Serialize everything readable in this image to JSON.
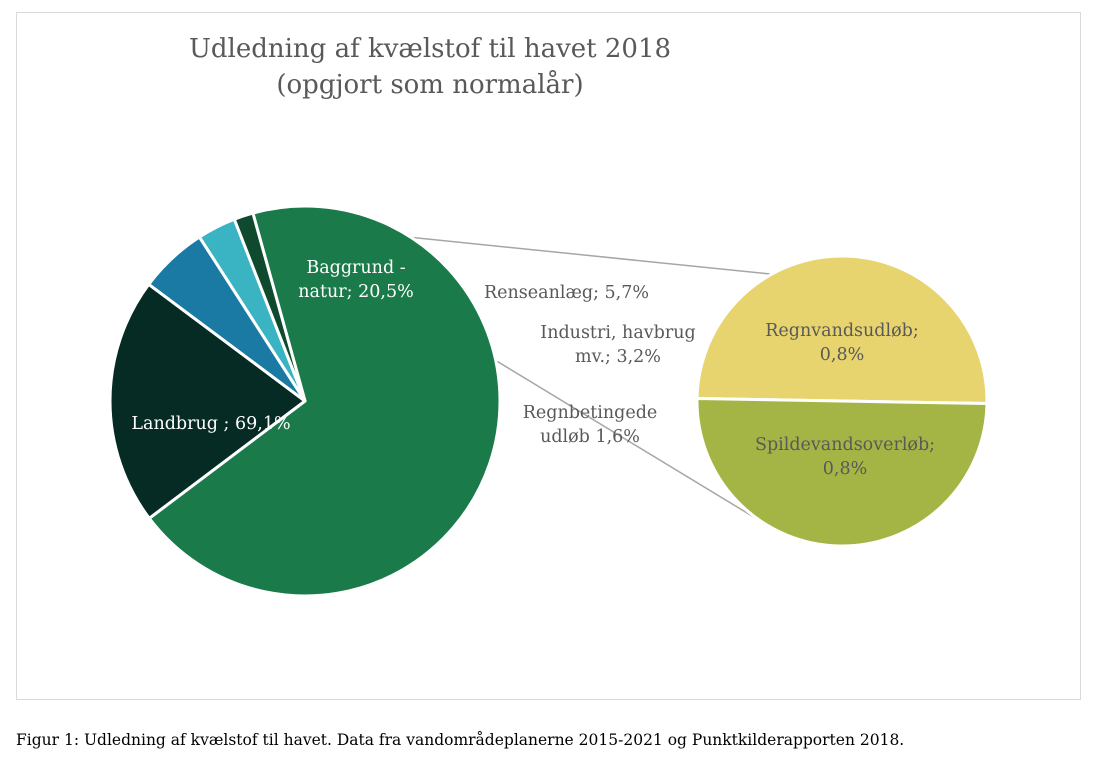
{
  "chart_data": {
    "type": "pie",
    "title": [
      "Udledning af kvælstof til havet 2018",
      "(opgjort som normalår)"
    ],
    "main_pie": {
      "slices": [
        {
          "name": "Landbrug",
          "label": [
            "Landbrug ; 69,1%"
          ],
          "value": 69.1,
          "color": "#1a7a4a"
        },
        {
          "name": "Baggrund - natur",
          "label": [
            "Baggrund -",
            "natur; 20,5%"
          ],
          "value": 20.5,
          "color": "#052b24"
        },
        {
          "name": "Renseanlæg",
          "label": [
            "Renseanlæg; 5,7%"
          ],
          "value": 5.7,
          "color": "#1a7aa3"
        },
        {
          "name": "Industri, havbrug mv.",
          "label": [
            "Industri, havbrug",
            "mv.; 3,2%"
          ],
          "value": 3.2,
          "color": "#3ab3c2"
        },
        {
          "name": "Regnbetingede udløb",
          "label": [
            "Regnbetingede",
            "udløb 1,6%"
          ],
          "value": 1.6,
          "color": "#0f4a2e"
        }
      ]
    },
    "secondary_pie": {
      "slices": [
        {
          "name": "Regnvandsudløb",
          "label": [
            "Regnvandsudløb;",
            "0,8%"
          ],
          "value": 0.8,
          "color": "#e8d46e"
        },
        {
          "name": "Spildevandsoverløb",
          "label": [
            "Spildevandsoverløb;",
            "0,8%"
          ],
          "value": 0.8,
          "color": "#a4b545"
        }
      ]
    }
  },
  "caption": "Figur 1: Udledning af kvælstof til havet. Data fra vandområdeplanerne 2015-2021 og Punktkilderapporten 2018."
}
